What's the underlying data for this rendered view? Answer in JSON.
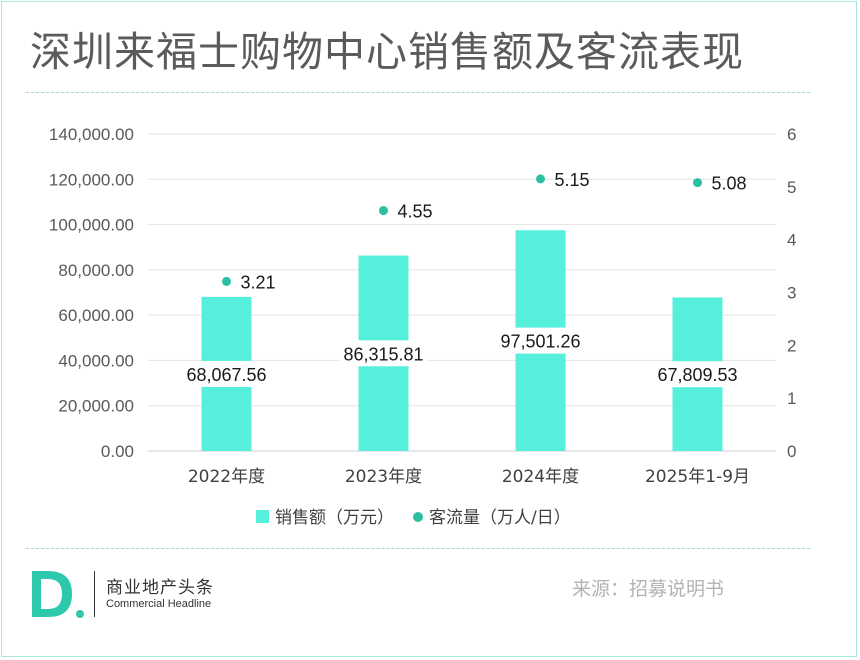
{
  "title": "深圳来福士购物中心销售额及客流表现",
  "chart_data": {
    "type": "bar+scatter",
    "categories": [
      "2022年度",
      "2023年度",
      "2024年度",
      "2025年1-9月"
    ],
    "series": [
      {
        "name": "销售额（万元）",
        "type": "bar",
        "axis": "left",
        "color": "#55efdc",
        "values": [
          68067.56,
          86315.81,
          97501.26,
          67809.53
        ],
        "labels": [
          "68,067.56",
          "86,315.81",
          "97,501.26",
          "67,809.53"
        ]
      },
      {
        "name": "客流量（万人/日）",
        "type": "scatter",
        "axis": "right",
        "color": "#2dbfa3",
        "values": [
          3.21,
          4.55,
          5.15,
          5.08
        ],
        "labels": [
          "3.21",
          "4.55",
          "5.15",
          "5.08"
        ]
      }
    ],
    "y_left": {
      "ylim": [
        0,
        140000
      ],
      "ticks": [
        "0.00",
        "20,000.00",
        "40,000.00",
        "60,000.00",
        "80,000.00",
        "100,000.00",
        "120,000.00",
        "140,000.00"
      ]
    },
    "y_right": {
      "ylim": [
        0,
        6
      ],
      "ticks": [
        "0",
        "1",
        "2",
        "3",
        "4",
        "5",
        "6"
      ]
    },
    "grid": true,
    "legend": "bottom"
  },
  "footer": {
    "brand_name": "商业地产头条",
    "brand_sub": "Commercial Headline",
    "source": "来源：招募说明书"
  }
}
